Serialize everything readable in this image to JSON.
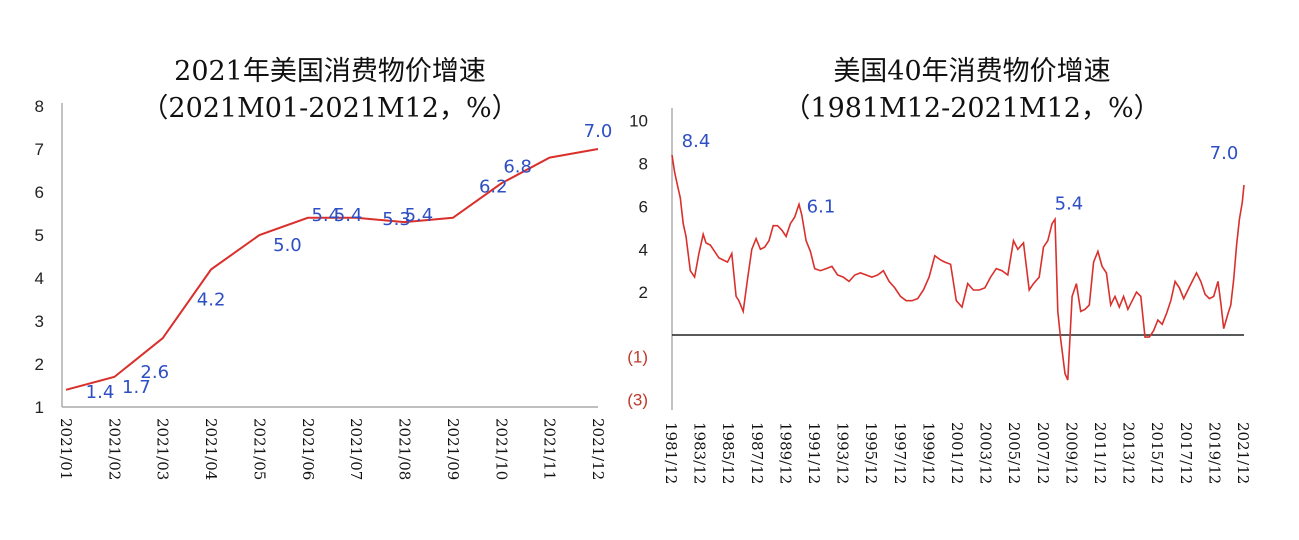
{
  "chart_data": [
    {
      "type": "line",
      "title": "2021年美国消费物价增速",
      "subtitle": "（2021M01-2021M12，%）",
      "categories": [
        "2021/01",
        "2021/02",
        "2021/03",
        "2021/04",
        "2021/05",
        "2021/06",
        "2021/07",
        "2021/08",
        "2021/09",
        "2021/10",
        "2021/11",
        "2021/12"
      ],
      "values": [
        1.4,
        1.7,
        2.6,
        4.2,
        5.0,
        5.4,
        5.4,
        5.3,
        5.4,
        6.2,
        6.8,
        7.0
      ],
      "data_labels": [
        "1.4",
        "1.7",
        "2.6",
        "4.2",
        "5.0",
        "5.4",
        "5.4",
        "5.3",
        "5.4",
        "6.2",
        "6.8",
        "7.0"
      ],
      "yticks": [
        "1",
        "2",
        "3",
        "4",
        "5",
        "6",
        "7",
        "8"
      ],
      "ylim": [
        1,
        8
      ],
      "line_color": "#d9302c",
      "label_color": "#2e4fc4",
      "grid": false
    },
    {
      "type": "line",
      "title": "美国40年消费物价增速",
      "subtitle": "（1981M12-2021M12，%）",
      "x_ticks": [
        "1981/12",
        "1983/12",
        "1985/12",
        "1987/12",
        "1989/12",
        "1991/12",
        "1993/12",
        "1995/12",
        "1997/12",
        "1999/12",
        "2001/12",
        "2003/12",
        "2005/12",
        "2007/12",
        "2009/12",
        "2011/12",
        "2013/12",
        "2015/12",
        "2017/12",
        "2019/12",
        "2021/12"
      ],
      "yticks": [
        "10",
        "8",
        "6",
        "4",
        "2",
        "(1)",
        "(3)"
      ],
      "ylim": [
        -3.5,
        10.5
      ],
      "series": [
        {
          "x": [
            1981.92,
            1982.1,
            1982.3,
            1982.5,
            1982.7,
            1982.9,
            1983.2,
            1983.5,
            1983.8,
            1984.1,
            1984.3,
            1984.6,
            1984.9,
            1985.2,
            1985.5,
            1985.8,
            1986.1,
            1986.4,
            1986.6,
            1986.9,
            1987.2,
            1987.5,
            1987.8,
            1988.1,
            1988.4,
            1988.7,
            1989.0,
            1989.3,
            1989.6,
            1989.9,
            1990.2,
            1990.5,
            1990.8,
            1991.0,
            1991.3,
            1991.6,
            1991.9,
            1992.3,
            1992.7,
            1993.1,
            1993.5,
            1993.9,
            1994.3,
            1994.7,
            1995.1,
            1995.5,
            1995.9,
            1996.3,
            1996.7,
            1997.1,
            1997.5,
            1997.9,
            1998.3,
            1998.7,
            1999.1,
            1999.5,
            1999.9,
            2000.3,
            2000.7,
            2001.0,
            2001.4,
            2001.8,
            2002.2,
            2002.6,
            2003.0,
            2003.4,
            2003.8,
            2004.2,
            2004.6,
            2005.0,
            2005.4,
            2005.8,
            2006.1,
            2006.5,
            2006.9,
            2007.2,
            2007.6,
            2007.9,
            2008.2,
            2008.5,
            2008.7,
            2008.9,
            2009.1,
            2009.4,
            2009.6,
            2009.9,
            2010.2,
            2010.5,
            2010.8,
            2011.1,
            2011.4,
            2011.7,
            2012.0,
            2012.3,
            2012.6,
            2012.9,
            2013.2,
            2013.5,
            2013.8,
            2014.1,
            2014.4,
            2014.7,
            2015.0,
            2015.3,
            2015.6,
            2015.9,
            2016.2,
            2016.5,
            2016.8,
            2017.1,
            2017.4,
            2017.7,
            2018.0,
            2018.3,
            2018.6,
            2018.9,
            2019.2,
            2019.5,
            2019.8,
            2020.1,
            2020.3,
            2020.5,
            2020.8,
            2021.0,
            2021.2,
            2021.4,
            2021.6,
            2021.8,
            2021.92
          ],
          "y": [
            8.4,
            7.6,
            7.0,
            6.4,
            5.2,
            4.6,
            3.0,
            2.7,
            3.8,
            4.7,
            4.3,
            4.2,
            3.9,
            3.6,
            3.5,
            3.4,
            3.8,
            1.8,
            1.6,
            1.1,
            2.6,
            4.0,
            4.5,
            4.0,
            4.1,
            4.4,
            5.1,
            5.1,
            4.9,
            4.6,
            5.2,
            5.5,
            6.1,
            5.6,
            4.4,
            3.9,
            3.1,
            3.0,
            3.1,
            3.2,
            2.8,
            2.7,
            2.5,
            2.8,
            2.9,
            2.8,
            2.7,
            2.8,
            3.0,
            2.5,
            2.2,
            1.8,
            1.6,
            1.6,
            1.7,
            2.1,
            2.7,
            3.7,
            3.5,
            3.4,
            3.3,
            1.6,
            1.3,
            2.4,
            2.1,
            2.1,
            2.2,
            2.7,
            3.1,
            3.0,
            2.8,
            4.4,
            4.0,
            4.3,
            2.1,
            2.4,
            2.7,
            4.1,
            4.4,
            5.2,
            5.4,
            1.1,
            -0.2,
            -1.8,
            -2.1,
            1.8,
            2.4,
            1.1,
            1.2,
            1.4,
            3.4,
            3.9,
            3.2,
            2.9,
            1.4,
            1.8,
            1.3,
            1.8,
            1.2,
            1.6,
            2.0,
            1.8,
            -0.1,
            -0.1,
            0.2,
            0.7,
            0.5,
            1.0,
            1.6,
            2.5,
            2.2,
            1.7,
            2.1,
            2.5,
            2.9,
            2.5,
            1.9,
            1.7,
            1.8,
            2.5,
            1.5,
            0.3,
            1.0,
            1.4,
            2.6,
            4.2,
            5.4,
            6.2,
            7.0
          ],
          "color": "#d9302c"
        }
      ],
      "baseline_y": 0,
      "annotations": [
        {
          "x": 1981.92,
          "y": 8.4,
          "text": "8.4"
        },
        {
          "x": 1990.8,
          "y": 6.1,
          "text": "6.1"
        },
        {
          "x": 2008.7,
          "y": 5.4,
          "text": "5.4"
        },
        {
          "x": 2021.92,
          "y": 7.0,
          "text": "7.0"
        }
      ],
      "label_color": "#2e4fc4",
      "grid": false
    }
  ]
}
